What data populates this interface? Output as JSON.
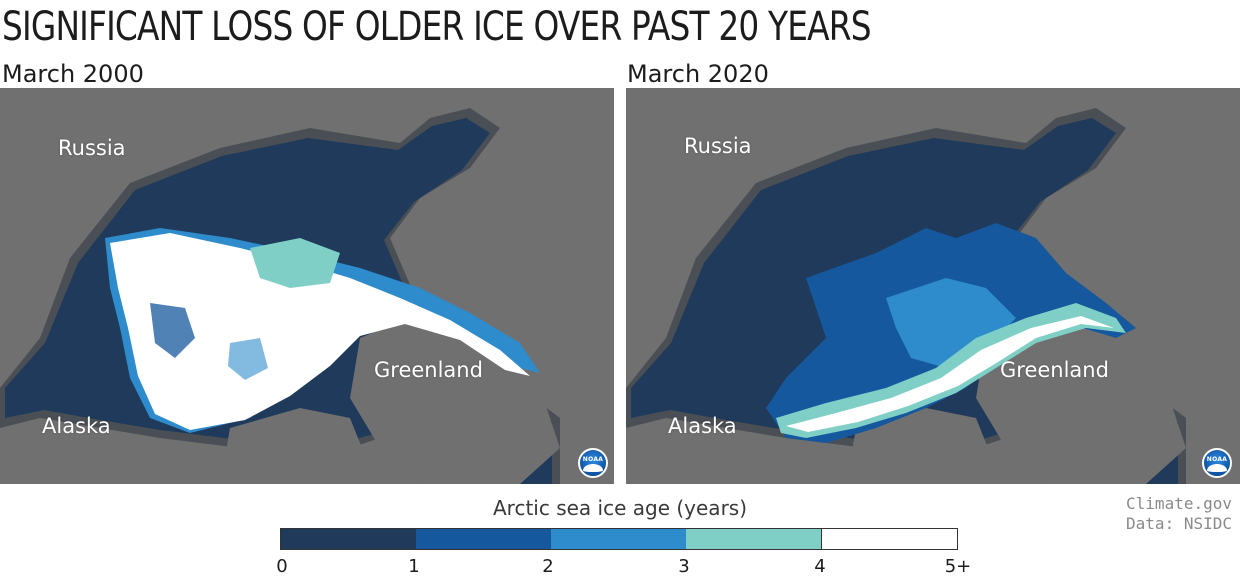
{
  "title": "SIGNIFICANT LOSS OF OLDER ICE OVER PAST 20 YEARS",
  "panels": [
    {
      "label": "March 2000",
      "regions": {
        "russia": "Russia",
        "greenland": "Greenland",
        "alaska": "Alaska"
      },
      "logo": "NOAA"
    },
    {
      "label": "March 2020",
      "regions": {
        "russia": "Russia",
        "greenland": "Greenland",
        "alaska": "Alaska"
      },
      "logo": "NOAA"
    }
  ],
  "legend": {
    "title": "Arctic sea ice age (years)",
    "ticks": [
      "0",
      "1",
      "2",
      "3",
      "4",
      "5+"
    ],
    "colors": [
      "#1f3a5a",
      "#15589e",
      "#2e8ccc",
      "#7fcfc6",
      "#ffffff"
    ]
  },
  "colors": {
    "land": "#707070",
    "ocean": "#1f3a5a",
    "coast_buffer": "#4a4f55"
  },
  "credit": {
    "source": "Climate.gov",
    "data": "Data: NSIDC"
  }
}
